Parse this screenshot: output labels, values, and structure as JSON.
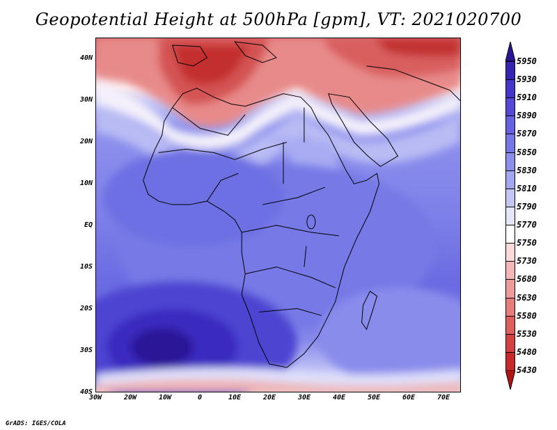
{
  "title": "Geopotential Height at 500hPa [gpm], VT: 2021020700",
  "footer": "GrADS: IGES/COLA",
  "map": {
    "lon_range": [
      -30,
      75
    ],
    "lat_range": [
      -40,
      45
    ],
    "lat_ticks": [
      "40N",
      "30N",
      "20N",
      "10N",
      "EQ",
      "10S",
      "20S",
      "30S",
      "40S"
    ],
    "lon_ticks": [
      "30W",
      "20W",
      "10W",
      "0",
      "10E",
      "20E",
      "30E",
      "40E",
      "50E",
      "60E",
      "70E"
    ],
    "coastline_color": "#000000"
  },
  "colorbar": {
    "levels": [
      "5950",
      "5930",
      "5910",
      "5890",
      "5870",
      "5850",
      "5830",
      "5810",
      "5790",
      "5770",
      "5750",
      "5730",
      "5680",
      "5630",
      "5580",
      "5530",
      "5480",
      "5430"
    ],
    "colors": [
      "#2b1496",
      "#3624b4",
      "#4535c9",
      "#5548d6",
      "#6661e0",
      "#7577e6",
      "#8c8eec",
      "#a3a7f1",
      "#c4c6f6",
      "#e6e6fb",
      "#ffffff",
      "#fbdada",
      "#f4b6b6",
      "#ee9b9b",
      "#e77c7c",
      "#df5e5e",
      "#d54141",
      "#c82828",
      "#b01414"
    ]
  }
}
